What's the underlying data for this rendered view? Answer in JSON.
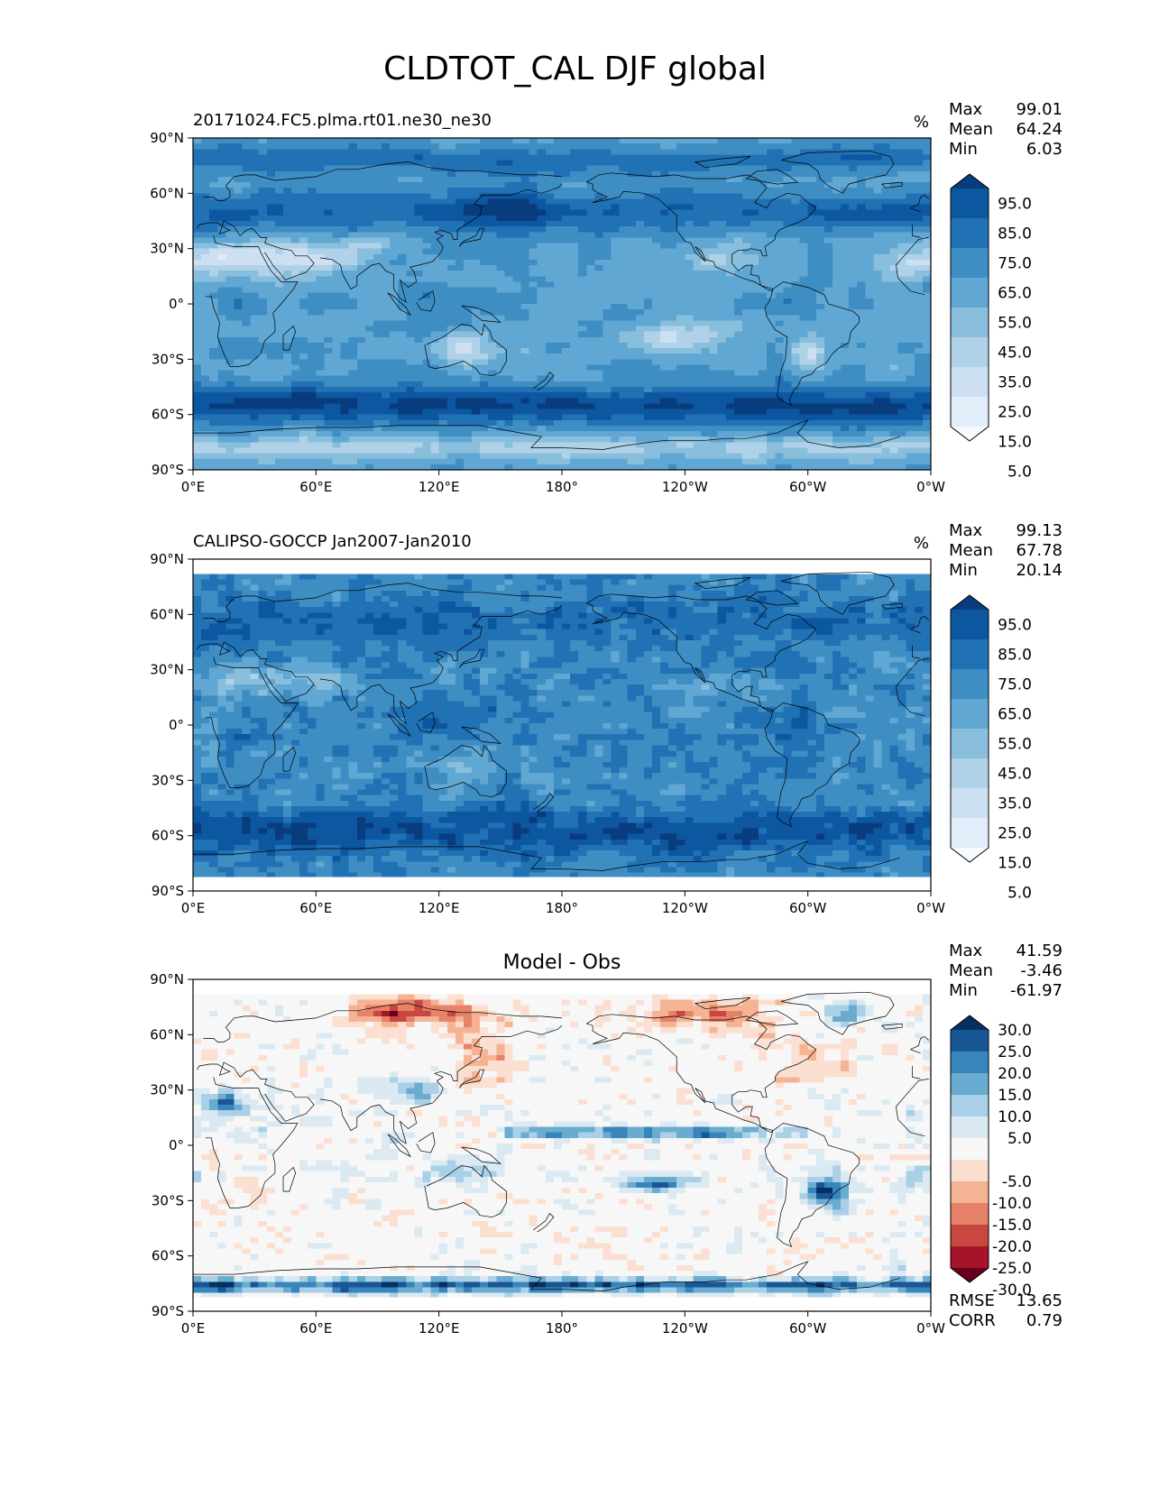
{
  "figure": {
    "title": "CLDTOT_CAL DJF global"
  },
  "axes": {
    "y_ticks": [
      "90°N",
      "60°N",
      "30°N",
      "0°",
      "30°S",
      "60°S",
      "90°S"
    ],
    "x_ticks": [
      "0°E",
      "60°E",
      "120°E",
      "180°",
      "120°W",
      "60°W",
      "0°W"
    ]
  },
  "colors": {
    "blues": [
      "#f7fbff",
      "#e1edf8",
      "#cde0f2",
      "#b0d2e8",
      "#89bfdd",
      "#60a7d3",
      "#3e8ec4",
      "#2171b5",
      "#0d56a0",
      "#083c7d"
    ],
    "diff": [
      "#67001f",
      "#a51429",
      "#c94741",
      "#e58268",
      "#f6b394",
      "#fbe0d1",
      "#f7f7f7",
      "#dbeaf2",
      "#a9d0e6",
      "#6aacd0",
      "#3885bc",
      "#195696",
      "#053061"
    ]
  },
  "chart_data": [
    {
      "type": "heatmap",
      "panel_title": "20171024.FC5.plma.rt01.ne30_ne30",
      "units": "%",
      "stats": [
        {
          "label": "Max",
          "value": "99.01"
        },
        {
          "label": "Mean",
          "value": "64.24"
        },
        {
          "label": "Min",
          "value": "6.03"
        }
      ],
      "colorbar_ticks": [
        "95.0",
        "85.0",
        "75.0",
        "65.0",
        "55.0",
        "45.0",
        "35.0",
        "25.0",
        "15.0",
        "5.0"
      ],
      "levels": [
        0,
        10,
        20,
        30,
        40,
        50,
        60,
        70,
        80,
        90,
        100
      ],
      "xlim": [
        0,
        360
      ],
      "ylim": [
        -90,
        90
      ]
    },
    {
      "type": "heatmap",
      "panel_title": "CALIPSO-GOCCP Jan2007-Jan2010",
      "units": "%",
      "stats": [
        {
          "label": "Max",
          "value": "99.13"
        },
        {
          "label": "Mean",
          "value": "67.78"
        },
        {
          "label": "Min",
          "value": "20.14"
        }
      ],
      "colorbar_ticks": [
        "95.0",
        "85.0",
        "75.0",
        "65.0",
        "55.0",
        "45.0",
        "35.0",
        "25.0",
        "15.0",
        "5.0"
      ],
      "levels": [
        0,
        10,
        20,
        30,
        40,
        50,
        60,
        70,
        80,
        90,
        100
      ],
      "xlim": [
        0,
        360
      ],
      "ylim": [
        -90,
        90
      ],
      "data_lat_range": [
        -82,
        82
      ]
    },
    {
      "type": "heatmap",
      "panel_title": "Model - Obs",
      "stats": [
        {
          "label": "Max",
          "value": "41.59"
        },
        {
          "label": "Mean",
          "value": "-3.46"
        },
        {
          "label": "Min",
          "value": "-61.97"
        }
      ],
      "colorbar_ticks": [
        "30.0",
        "25.0",
        "20.0",
        "15.0",
        "10.0",
        "5.0",
        "-5.0",
        "-10.0",
        "-15.0",
        "-20.0",
        "-25.0",
        "-30.0"
      ],
      "levels": [
        -35,
        -30,
        -25,
        -20,
        -15,
        -10,
        -5,
        5,
        10,
        15,
        20,
        25,
        30,
        35
      ],
      "xlim": [
        0,
        360
      ],
      "ylim": [
        -90,
        90
      ],
      "data_lat_range": [
        -82,
        82
      ],
      "bottom_stats": [
        {
          "label": "RMSE",
          "value": "13.65"
        },
        {
          "label": "CORR",
          "value": "0.79"
        }
      ]
    }
  ]
}
